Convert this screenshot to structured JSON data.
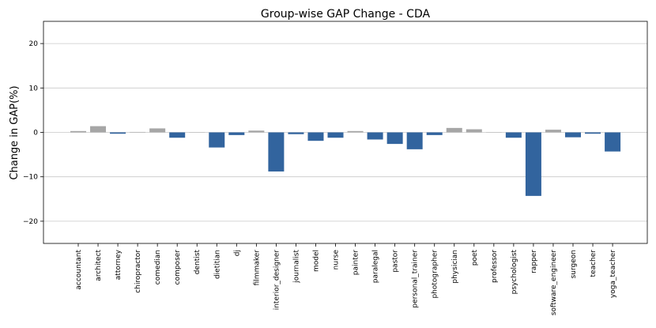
{
  "chart_data": {
    "type": "bar",
    "title": "Group-wise GAP Change - CDA",
    "xlabel": "",
    "ylabel": "Change in GAP(%)",
    "ylim": [
      -25,
      25
    ],
    "yticks": [
      -20,
      -10,
      0,
      10,
      20
    ],
    "grid": "horizontal",
    "colors": {
      "positive": "#a6a6a6",
      "negative": "#32649e"
    },
    "categories": [
      "accountant",
      "architect",
      "attorney",
      "chiropractor",
      "comedian",
      "composer",
      "dentist",
      "dietitian",
      "dj",
      "filmmaker",
      "interior_designer",
      "journalist",
      "model",
      "nurse",
      "painter",
      "paralegal",
      "pastor",
      "personal_trainer",
      "photographer",
      "physician",
      "poet",
      "professor",
      "psychologist",
      "rapper",
      "software_engineer",
      "surgeon",
      "teacher",
      "yoga_teacher"
    ],
    "values": [
      0.3,
      1.4,
      -0.3,
      0.1,
      0.9,
      -1.2,
      0.05,
      -3.4,
      -0.6,
      0.4,
      -8.8,
      -0.4,
      -1.9,
      -1.2,
      0.3,
      -1.6,
      -2.6,
      -3.8,
      -0.6,
      1.0,
      0.7,
      0.05,
      -1.2,
      -14.3,
      0.6,
      -1.1,
      -0.3,
      -4.3
    ]
  }
}
